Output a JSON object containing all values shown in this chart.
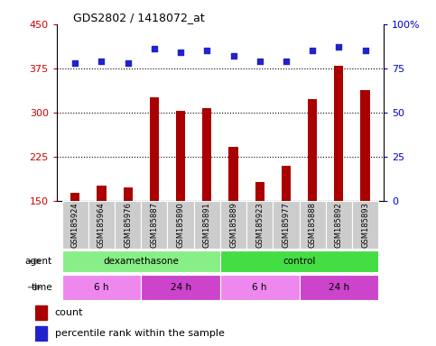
{
  "title": "GDS2802 / 1418072_at",
  "samples": [
    "GSM185924",
    "GSM185964",
    "GSM185976",
    "GSM185887",
    "GSM185890",
    "GSM185891",
    "GSM185889",
    "GSM185923",
    "GSM185977",
    "GSM185888",
    "GSM185892",
    "GSM185893"
  ],
  "counts": [
    163,
    175,
    172,
    325,
    302,
    308,
    242,
    182,
    210,
    322,
    380,
    338
  ],
  "percentiles": [
    78,
    79,
    78,
    86,
    84,
    85,
    82,
    79,
    79,
    85,
    87,
    85
  ],
  "bar_color": "#aa0000",
  "dot_color": "#2222cc",
  "left_ylim": [
    150,
    450
  ],
  "left_yticks": [
    150,
    225,
    300,
    375,
    450
  ],
  "right_ylim": [
    0,
    100
  ],
  "right_yticks": [
    0,
    25,
    50,
    75,
    100
  ],
  "agent_labels": [
    {
      "label": "dexamethasone",
      "start": 0,
      "end": 6,
      "color": "#88ee88"
    },
    {
      "label": "control",
      "start": 6,
      "end": 12,
      "color": "#44dd44"
    }
  ],
  "time_labels": [
    {
      "label": "6 h",
      "start": 0,
      "end": 3,
      "color": "#ee88ee"
    },
    {
      "label": "24 h",
      "start": 3,
      "end": 6,
      "color": "#cc44cc"
    },
    {
      "label": "6 h",
      "start": 6,
      "end": 9,
      "color": "#ee88ee"
    },
    {
      "label": "24 h",
      "start": 9,
      "end": 12,
      "color": "#cc44cc"
    }
  ],
  "legend_count_color": "#aa0000",
  "legend_dot_color": "#2222cc",
  "tick_label_color": "#cc0000",
  "right_tick_color": "#0000cc",
  "bg_color": "#ffffff",
  "plot_bg": "#ffffff",
  "grid_color": "#000000",
  "bar_width": 0.35
}
